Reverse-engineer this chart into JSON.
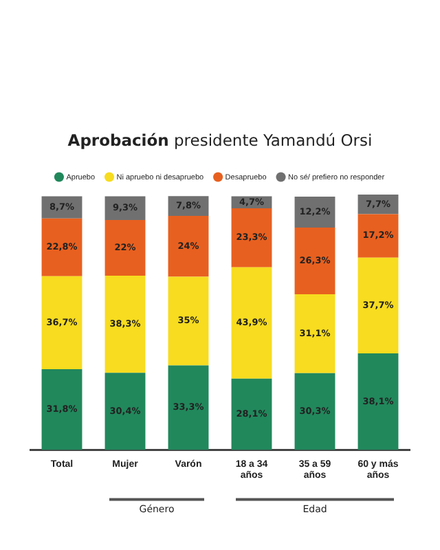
{
  "chart_data": {
    "type": "bar",
    "stacked": true,
    "title": "Aprobación presidente Yamandú Orsi",
    "categories": [
      "Total",
      "Mujer",
      "Varón",
      "18 a 34 años",
      "35 a 59 años",
      "60 y más años"
    ],
    "series": [
      {
        "name": "Apruebo",
        "color": "#21885c",
        "values": [
          31.8,
          30.4,
          33.3,
          28.1,
          30.3,
          38.1
        ],
        "value_labels": [
          "31,8%",
          "30,4%",
          "33,3%",
          "28,1%",
          "30,3%",
          "38,1%"
        ]
      },
      {
        "name": "Ni apruebo ni desapruebo",
        "color": "#f7dc1f",
        "values": [
          36.7,
          38.3,
          35,
          43.9,
          31.1,
          37.7
        ],
        "value_labels": [
          "36,7%",
          "38,3%",
          "35%",
          "43,9%",
          "31,1%",
          "37,7%"
        ]
      },
      {
        "name": "Desapruebo",
        "color": "#e8601f",
        "values": [
          22.8,
          22,
          24,
          23.3,
          26.3,
          17.2
        ],
        "value_labels": [
          "22,8%",
          "22%",
          "24%",
          "23,3%",
          "26,3%",
          "17,2%"
        ]
      },
      {
        "name": "No sé/ prefiero no responder",
        "color": "#707070",
        "values": [
          8.7,
          9.3,
          7.8,
          4.7,
          12.2,
          7.7
        ],
        "value_labels": [
          "8,7%",
          "9,3%",
          "7,8%",
          "4,7%",
          "12,2%",
          "7,7%"
        ]
      }
    ],
    "annotations": [
      "Género",
      "Edad"
    ],
    "legend": "top",
    "grid": false
  }
}
